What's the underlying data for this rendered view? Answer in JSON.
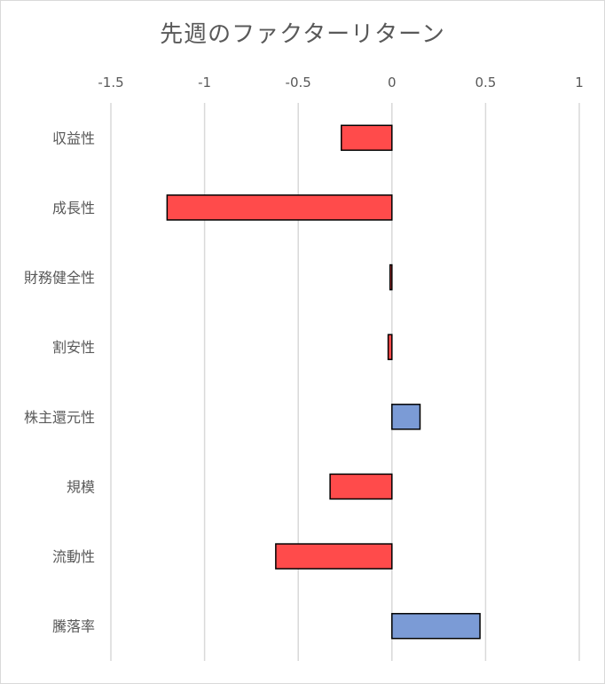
{
  "chart_data": {
    "type": "bar",
    "orientation": "horizontal",
    "title": "先週のファクターリターン",
    "xlabel": "",
    "ylabel": "",
    "xlim": [
      -1.5,
      1
    ],
    "xticks": [
      -1.5,
      -1,
      -0.5,
      0,
      0.5,
      1
    ],
    "xtick_labels": [
      "-1.5",
      "-1",
      "-0.5",
      "0",
      "0.5",
      "1"
    ],
    "categories": [
      "収益性",
      "成長性",
      "財務健全性",
      "割安性",
      "株主還元性",
      "規模",
      "流動性",
      "騰落率"
    ],
    "values": [
      -0.27,
      -1.2,
      -0.01,
      -0.02,
      0.15,
      -0.33,
      -0.62,
      0.47
    ],
    "grid": true,
    "legend": "none",
    "colors": {
      "negative": "#ff4b4b",
      "positive": "#7b9bd6",
      "bar_border": "#000000",
      "grid": "#d9d9d9",
      "text": "#595959"
    }
  }
}
